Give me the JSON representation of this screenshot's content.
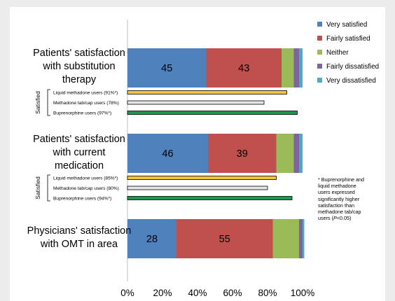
{
  "chart_data": {
    "type": "bar",
    "orientation": "horizontal",
    "stacked": true,
    "x_tick_labels": [
      "0%",
      "20%",
      "40%",
      "60%",
      "80%",
      "100%"
    ],
    "xlim": [
      0,
      100
    ],
    "legend": {
      "placement": "top-right",
      "entries": [
        {
          "label": "Very satisfied",
          "color": "#4f81bd"
        },
        {
          "label": "Fairly satisfied",
          "color": "#c0504d"
        },
        {
          "label": "Neither",
          "color": "#9bbb59"
        },
        {
          "label": "Fairly dissatisfied",
          "color": "#8064a2"
        },
        {
          "label": "Very dissatisfied",
          "color": "#4bacc6"
        }
      ]
    },
    "stacked_bars": [
      {
        "label_lines": [
          "Patients' satisfaction",
          "with substitution",
          "therapy"
        ],
        "values": [
          45,
          43,
          7,
          3,
          2
        ],
        "data_labels": [
          "45",
          "43",
          "",
          "",
          ""
        ]
      },
      {
        "label_lines": [
          "Patients' satisfaction",
          "with current",
          "medication"
        ],
        "values": [
          46,
          39,
          10,
          3,
          2
        ],
        "data_labels": [
          "46",
          "39",
          "",
          "",
          ""
        ]
      },
      {
        "label_lines": [
          "Physicians' satisfaction",
          "with OMT in area"
        ],
        "values": [
          28,
          55,
          15,
          2,
          1
        ],
        "data_labels": [
          "28",
          "55",
          "",
          "",
          ""
        ]
      }
    ],
    "subgroups": [
      {
        "group_label": "Satisfied",
        "bars": [
          {
            "label": "Liquid methadone users (91%*)",
            "value": 91,
            "color": "#f6c33a"
          },
          {
            "label": "Methadone tab/cap users (78%)",
            "value": 78,
            "color": "#e4e4e4"
          },
          {
            "label": "Buprenorphine users (97%*)",
            "value": 97,
            "color": "#1b9a4f"
          }
        ]
      },
      {
        "group_label": "Satisfied",
        "bars": [
          {
            "label": "Liquid methadone users (85%*)",
            "value": 85,
            "color": "#f6c33a"
          },
          {
            "label": "Methadone tab/cap users (80%)",
            "value": 80,
            "color": "#e4e4e4"
          },
          {
            "label": "Buprenorphine users (94%*)",
            "value": 94,
            "color": "#1b9a4f"
          }
        ]
      }
    ],
    "annotation": {
      "prefix": "* ",
      "lines": [
        "Buprenorphine and",
        "liquid methadone",
        "users expressed",
        "significantly higher",
        "satisfaction than",
        "methadone tab/cap"
      ],
      "last_line_prefix": "users (",
      "p_symbol": "P",
      "last_line_suffix": "<0.05)"
    }
  }
}
